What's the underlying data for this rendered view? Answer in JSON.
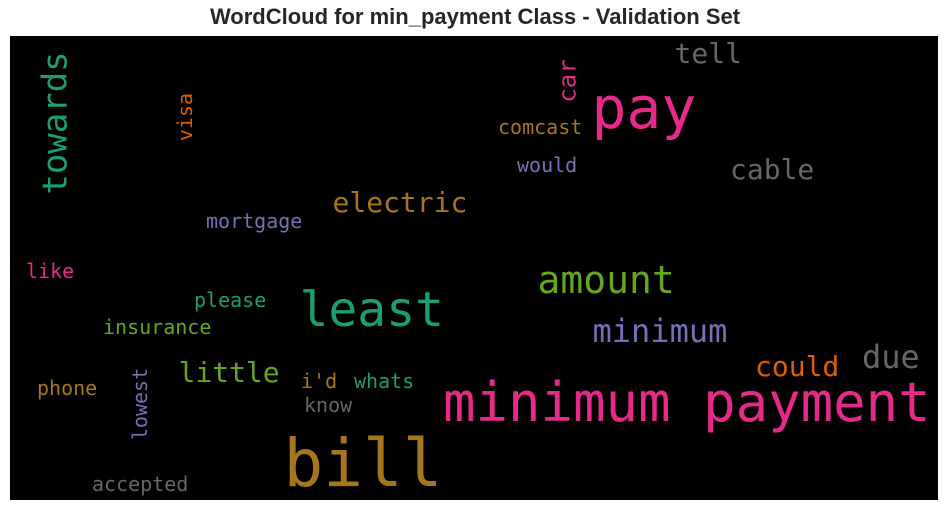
{
  "chart_data": {
    "type": "wordcloud",
    "title": "WordCloud for min_payment Class - Validation Set",
    "background": "#000000",
    "words": [
      {
        "text": "minimum payment",
        "color": "#e7298a",
        "orientation": "horizontal"
      },
      {
        "text": "bill",
        "color": "#a6761d",
        "orientation": "horizontal"
      },
      {
        "text": "pay",
        "color": "#e7298a",
        "orientation": "horizontal"
      },
      {
        "text": "least",
        "color": "#1b9e77",
        "orientation": "horizontal"
      },
      {
        "text": "towards",
        "color": "#1b9e77",
        "orientation": "vertical"
      },
      {
        "text": "amount",
        "color": "#66a61e",
        "orientation": "horizontal"
      },
      {
        "text": "minimum",
        "color": "#7570b3",
        "orientation": "horizontal"
      },
      {
        "text": "due",
        "color": "#666666",
        "orientation": "horizontal"
      },
      {
        "text": "tell",
        "color": "#666666",
        "orientation": "horizontal"
      },
      {
        "text": "electric",
        "color": "#a6761d",
        "orientation": "horizontal"
      },
      {
        "text": "cable",
        "color": "#666666",
        "orientation": "horizontal"
      },
      {
        "text": "little",
        "color": "#66a61e",
        "orientation": "horizontal"
      },
      {
        "text": "could",
        "color": "#d95f02",
        "orientation": "horizontal"
      },
      {
        "text": "car",
        "color": "#e7298a",
        "orientation": "vertical"
      },
      {
        "text": "comcast",
        "color": "#a6761d",
        "orientation": "horizontal"
      },
      {
        "text": "mortgage",
        "color": "#7570b3",
        "orientation": "horizontal"
      },
      {
        "text": "insurance",
        "color": "#66a61e",
        "orientation": "horizontal"
      },
      {
        "text": "lowest",
        "color": "#7570b3",
        "orientation": "vertical"
      },
      {
        "text": "visa",
        "color": "#d95f02",
        "orientation": "vertical"
      },
      {
        "text": "accepted",
        "color": "#666666",
        "orientation": "horizontal"
      },
      {
        "text": "please",
        "color": "#1b9e77",
        "orientation": "horizontal"
      },
      {
        "text": "would",
        "color": "#7570b3",
        "orientation": "horizontal"
      },
      {
        "text": "whats",
        "color": "#1b9e77",
        "orientation": "horizontal"
      },
      {
        "text": "phone",
        "color": "#a6761d",
        "orientation": "horizontal"
      },
      {
        "text": "like",
        "color": "#e7298a",
        "orientation": "horizontal"
      },
      {
        "text": "i'd",
        "color": "#a6761d",
        "orientation": "horizontal"
      },
      {
        "text": "know",
        "color": "#666666",
        "orientation": "horizontal"
      }
    ]
  }
}
